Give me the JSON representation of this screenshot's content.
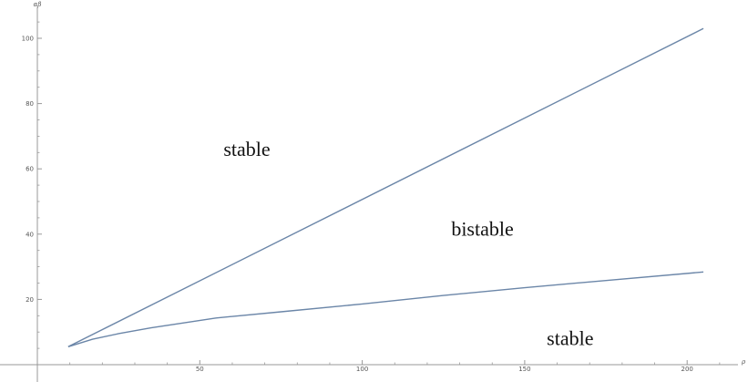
{
  "chart_data": {
    "type": "line",
    "xlabel": "ρ",
    "ylabel": "αβ",
    "xlim": [
      -8,
      215
    ],
    "ylim": [
      -26,
      113
    ],
    "x_ticks": [
      50,
      100,
      150,
      200
    ],
    "y_ticks": [
      20,
      40,
      60,
      80,
      100
    ],
    "grid": false,
    "series": [
      {
        "name": "",
        "color": "#6b86a8",
        "x": [
          9.5,
          205
        ],
        "y": [
          5.5,
          103
        ]
      },
      {
        "name": "",
        "color": "#6b86a8",
        "x": [
          9.5,
          17,
          25,
          35,
          45,
          55,
          75,
          100,
          125,
          150,
          175,
          205
        ],
        "y": [
          5.5,
          7.8,
          9.5,
          11.3,
          12.8,
          14.3,
          16.2,
          18.6,
          21.2,
          23.6,
          25.8,
          28.4
        ]
      }
    ],
    "annotations": [
      {
        "text": "stable",
        "x": 64.5,
        "y": 64
      },
      {
        "text": "bistable",
        "x": 137,
        "y": 39.5
      },
      {
        "text": "stable",
        "x": 164,
        "y": 6
      }
    ]
  }
}
